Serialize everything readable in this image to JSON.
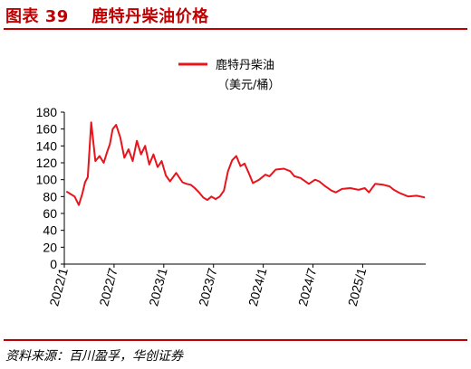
{
  "figure": {
    "title": "图表 39　 鹿特丹柴油价格",
    "source": "资料来源：百川盈孚，华创证券"
  },
  "colors": {
    "accent": "#c00000",
    "series": "#e8141c",
    "axis": "#000000"
  },
  "chart_data": {
    "type": "line",
    "title": "",
    "xlabel": "",
    "ylabel": "",
    "ylim": [
      0,
      180
    ],
    "yticks": [
      0,
      20,
      40,
      60,
      80,
      100,
      120,
      140,
      160,
      180
    ],
    "xticks": [
      "2022/1",
      "2022/7",
      "2023/1",
      "2023/7",
      "2024/1",
      "2024/7",
      "2025/1"
    ],
    "grid": false,
    "legend_position": "top-center",
    "series": [
      {
        "name": "鹿特丹柴油",
        "name_sub": "（美元/桶）",
        "x": [
          "2022/1",
          "2022/1",
          "2022/2",
          "2022/2",
          "2022/3",
          "2022/3",
          "2022/3",
          "2022/4",
          "2022/4",
          "2022/5",
          "2022/5",
          "2022/6",
          "2022/6",
          "2022/6",
          "2022/7",
          "2022/7",
          "2022/8",
          "2022/8",
          "2022/9",
          "2022/9",
          "2022/10",
          "2022/10",
          "2022/11",
          "2022/11",
          "2022/12",
          "2022/12",
          "2023/1",
          "2023/1",
          "2023/2",
          "2023/3",
          "2023/3",
          "2023/4",
          "2023/4",
          "2023/5",
          "2023/5",
          "2023/6",
          "2023/6",
          "2023/7",
          "2023/7",
          "2023/8",
          "2023/8",
          "2023/9",
          "2023/9",
          "2023/10",
          "2023/10",
          "2023/11",
          "2023/11",
          "2023/12",
          "2024/1",
          "2024/1",
          "2024/2",
          "2024/3",
          "2024/4",
          "2024/4",
          "2024/5",
          "2024/6",
          "2024/7",
          "2024/7",
          "2024/8",
          "2024/9",
          "2024/9",
          "2024/10",
          "2024/11",
          "2024/12",
          "2025/1",
          "2025/1",
          "2025/2",
          "2025/3",
          "2025/4",
          "2025/4",
          "2025/5",
          "2025/6",
          "2025/7",
          "2025/8"
        ],
        "values": [
          86,
          83,
          80,
          70,
          83,
          97,
          103,
          168,
          122,
          128,
          120,
          133,
          142,
          160,
          165,
          150,
          126,
          136,
          122,
          146,
          130,
          140,
          118,
          130,
          115,
          122,
          105,
          98,
          108,
          97,
          95,
          94,
          90,
          85,
          79,
          76,
          80,
          77,
          80,
          87,
          110,
          123,
          128,
          116,
          119,
          108,
          96,
          100,
          106,
          104,
          112,
          113,
          110,
          104,
          102,
          95,
          100,
          98,
          92,
          87,
          85,
          89,
          90,
          88,
          90,
          85,
          95,
          94,
          92,
          88,
          84,
          80,
          81,
          79
        ]
      }
    ]
  }
}
